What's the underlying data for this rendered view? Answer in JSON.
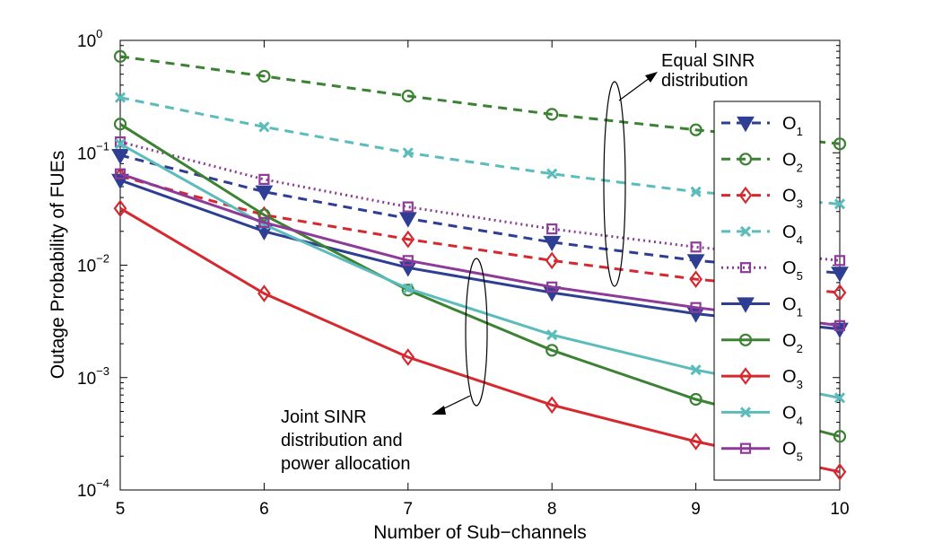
{
  "chart_data": {
    "type": "line",
    "xlabel": "Number of Sub−channels",
    "ylabel": "Outage Probability of FUEs",
    "x": [
      5,
      6,
      7,
      8,
      9,
      10
    ],
    "xlim": [
      5,
      10
    ],
    "ylim": [
      0.0001,
      1
    ],
    "yscale": "log",
    "grid": false,
    "legend_position": "right",
    "x_tick_labels": [
      "5",
      "6",
      "7",
      "8",
      "9",
      "10"
    ],
    "y_tick_labels": [
      {
        "base": "10",
        "exp": "0",
        "value": 1
      },
      {
        "base": "10",
        "exp": "−1",
        "value": 0.1
      },
      {
        "base": "10",
        "exp": "−2",
        "value": 0.01
      },
      {
        "base": "10",
        "exp": "−3",
        "value": 0.001
      },
      {
        "base": "10",
        "exp": "−4",
        "value": 0.0001
      }
    ],
    "series": [
      {
        "name": "O",
        "sub": "1",
        "group": "equal",
        "style": "dashed",
        "marker": "triangle-down",
        "color": "#2e3f93",
        "values": [
          0.095,
          0.045,
          0.026,
          0.016,
          0.011,
          0.0085
        ]
      },
      {
        "name": "O",
        "sub": "2",
        "group": "equal",
        "style": "dashed",
        "marker": "circle",
        "color": "#3b8232",
        "values": [
          0.72,
          0.48,
          0.32,
          0.22,
          0.16,
          0.12
        ]
      },
      {
        "name": "O",
        "sub": "3",
        "group": "equal",
        "style": "dashed",
        "marker": "diamond",
        "color": "#d6282f",
        "values": [
          0.062,
          0.028,
          0.017,
          0.011,
          0.0075,
          0.0057
        ]
      },
      {
        "name": "O",
        "sub": "4",
        "group": "equal",
        "style": "dashed",
        "marker": "x",
        "color": "#5cbcbc",
        "values": [
          0.31,
          0.17,
          0.1,
          0.065,
          0.045,
          0.035
        ]
      },
      {
        "name": "O",
        "sub": "5",
        "group": "equal",
        "style": "dotted",
        "marker": "square",
        "color": "#8e3a99",
        "values": [
          0.125,
          0.058,
          0.033,
          0.021,
          0.0145,
          0.011
        ]
      },
      {
        "name": "O",
        "sub": "1",
        "group": "joint",
        "style": "solid",
        "marker": "triangle-down",
        "color": "#2e3f93",
        "values": [
          0.057,
          0.02,
          0.0095,
          0.0057,
          0.0037,
          0.0027
        ]
      },
      {
        "name": "O",
        "sub": "2",
        "group": "joint",
        "style": "solid",
        "marker": "circle",
        "color": "#3b8232",
        "values": [
          0.18,
          0.028,
          0.006,
          0.00175,
          0.00064,
          0.0003
        ]
      },
      {
        "name": "O",
        "sub": "3",
        "group": "joint",
        "style": "solid",
        "marker": "diamond",
        "color": "#d6282f",
        "values": [
          0.032,
          0.0056,
          0.00152,
          0.00057,
          0.00027,
          0.000145
        ]
      },
      {
        "name": "O",
        "sub": "4",
        "group": "joint",
        "style": "solid",
        "marker": "x",
        "color": "#5cbcbc",
        "values": [
          0.12,
          0.023,
          0.0062,
          0.0024,
          0.00117,
          0.00066
        ]
      },
      {
        "name": "O",
        "sub": "5",
        "group": "joint",
        "style": "solid",
        "marker": "square",
        "color": "#8e3a99",
        "values": [
          0.065,
          0.024,
          0.011,
          0.0064,
          0.0042,
          0.0029
        ]
      }
    ],
    "annotations": [
      {
        "id": "equal",
        "lines": [
          "Equal SINR",
          "distribution"
        ]
      },
      {
        "id": "joint",
        "lines": [
          "Joint SINR",
          "distribution and",
          "power allocation"
        ]
      }
    ]
  }
}
